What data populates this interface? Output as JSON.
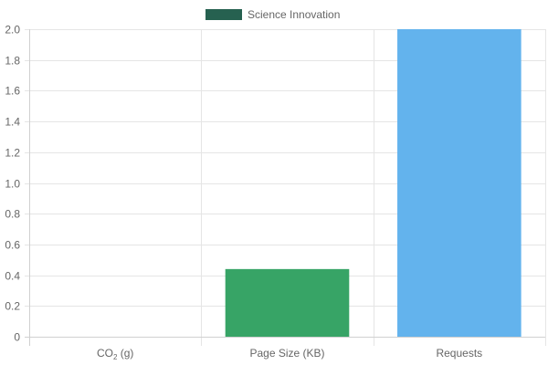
{
  "chart_data": {
    "type": "bar",
    "categories": [
      {
        "main": "CO",
        "sub": "2",
        "rest": " (g)"
      },
      {
        "main": "Page Size (KB)",
        "sub": "",
        "rest": ""
      },
      {
        "main": "Requests",
        "sub": "",
        "rest": ""
      }
    ],
    "values": [
      0,
      0.44,
      2.0
    ],
    "bar_colors": [
      "#266150",
      "#37a466",
      "#63b3ed"
    ],
    "legend": {
      "label": "Science Innovation",
      "color": "#266150",
      "placement": "top-center"
    },
    "title": "",
    "xlabel": "",
    "ylabel": "",
    "ylim": [
      0,
      2.0
    ],
    "yticks": [
      "0",
      "0.2",
      "0.4",
      "0.6",
      "0.8",
      "1.0",
      "1.2",
      "1.4",
      "1.6",
      "1.8",
      "2.0"
    ],
    "grid": true,
    "grid_color": "#e5e5e5",
    "axis_color": "#d0d0d0"
  }
}
